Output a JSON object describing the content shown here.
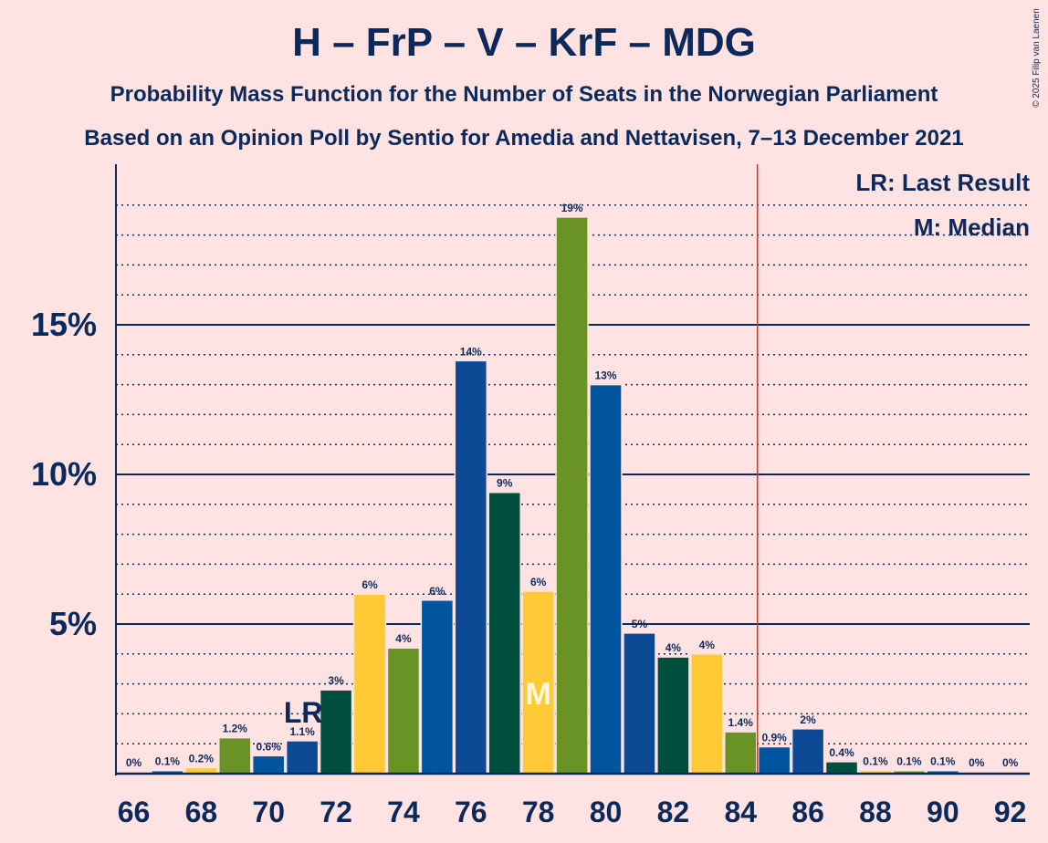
{
  "title": "H – FrP – V – KrF – MDG",
  "subtitle1": "Probability Mass Function for the Number of Seats in the Norwegian Parliament",
  "subtitle2": "Based on an Opinion Poll by Sentio for Amedia and Nettavisen, 7–13 December 2021",
  "copyright": "© 2025 Filip van Laenen",
  "legend": {
    "lr": "LR: Last Result",
    "median": "M: Median"
  },
  "markers": {
    "lr_label": "LR",
    "median_label": "M"
  },
  "colors": {
    "background": "#FFE3E3",
    "text": "#0B2A5B",
    "H": "#0D4A96",
    "FrP": "#00569E",
    "V": "#004F3E",
    "KrF": "#FFCA36",
    "MDG": "#6A9325",
    "majority_line": "#E8271C"
  },
  "chart_data": {
    "type": "bar",
    "x": [
      66,
      67,
      68,
      69,
      70,
      71,
      72,
      73,
      74,
      75,
      76,
      77,
      78,
      79,
      80,
      81,
      82,
      83,
      84,
      85,
      86,
      87,
      88,
      89,
      90,
      91,
      92
    ],
    "values": [
      0,
      0.1,
      0.2,
      1.2,
      0.6,
      1.1,
      2.8,
      6.0,
      4.2,
      5.8,
      13.8,
      9.4,
      6.1,
      18.6,
      13.0,
      4.7,
      3.9,
      4.0,
      1.4,
      0.9,
      1.5,
      0.4,
      0.1,
      0.1,
      0.1,
      0,
      0
    ],
    "labels": [
      "0%",
      "0.1%",
      "0.2%",
      "1.2%",
      "0.6%",
      "1.1%",
      "3%",
      "6%",
      "4%",
      "6%",
      "14%",
      "9%",
      "6%",
      "19%",
      "13%",
      "5%",
      "4%",
      "4%",
      "1.4%",
      "0.9%",
      "2%",
      "0.4%",
      "0.1%",
      "0.1%",
      "0.1%",
      "0%",
      "0%"
    ],
    "bar_colors": [
      "H",
      "FrP",
      "KrF",
      "MDG",
      "FrP",
      "H",
      "V",
      "KrF",
      "MDG",
      "FrP",
      "H",
      "V",
      "KrF",
      "MDG",
      "FrP",
      "H",
      "V",
      "KrF",
      "MDG",
      "FrP",
      "H",
      "V",
      "KrF",
      "MDG",
      "FrP",
      "H",
      "V"
    ],
    "x_ticks": [
      66,
      68,
      70,
      72,
      74,
      76,
      78,
      80,
      82,
      84,
      86,
      88,
      90,
      92
    ],
    "y_ticks": [
      {
        "value": 5,
        "label": "5%"
      },
      {
        "value": 10,
        "label": "10%"
      },
      {
        "value": 15,
        "label": "15%"
      }
    ],
    "ylim": [
      0,
      20
    ],
    "last_result_seat": 71,
    "median_seat": 78,
    "majority_after_seat": 84
  }
}
